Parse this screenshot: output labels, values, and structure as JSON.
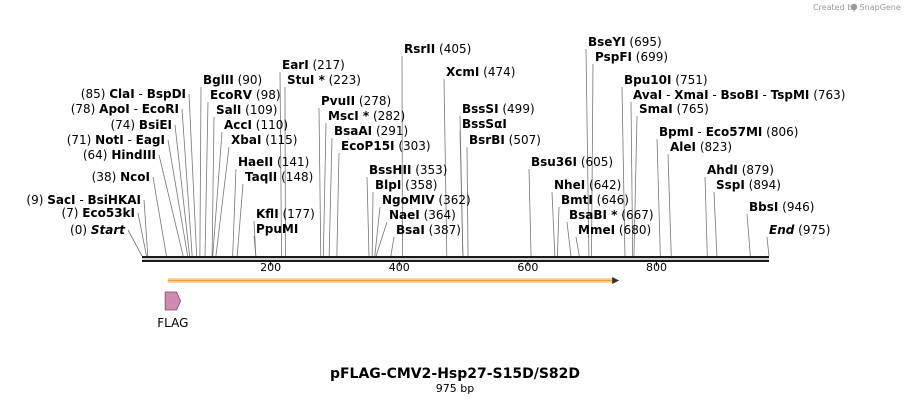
{
  "credit": "Created by SnapGene",
  "title": "pFLAG-CMV2-Hsp27-S15D/S82D",
  "length_label": "975 bp",
  "sequence_length": 975,
  "scale_ticks": [
    {
      "label": "200",
      "value": 200
    },
    {
      "label": "400",
      "value": 400
    },
    {
      "label": "600",
      "value": 600
    },
    {
      "label": "800",
      "value": 800
    }
  ],
  "feature": {
    "name": "FLAG",
    "start": 36,
    "end": 60,
    "color": "#d08ab0"
  },
  "orf": {
    "start": 40,
    "end": 742,
    "color": "#f0a030"
  },
  "sites": [
    {
      "side": "L",
      "pos": "(0)",
      "names": [
        "Start"
      ],
      "italic": true,
      "site": 0
    },
    {
      "side": "L",
      "pos": "(7)",
      "names": [
        "Eco53kI"
      ],
      "site": 7
    },
    {
      "side": "L",
      "pos": "(9)",
      "names": [
        "SacI",
        "BsiHKAI"
      ],
      "site": 9
    },
    {
      "side": "L",
      "pos": "(38)",
      "names": [
        "NcoI"
      ],
      "site": 38
    },
    {
      "side": "L",
      "pos": "(64)",
      "names": [
        "HindIII"
      ],
      "site": 64
    },
    {
      "side": "L",
      "pos": "(71)",
      "names": [
        "NotI",
        "EagI"
      ],
      "site": 71
    },
    {
      "side": "L",
      "pos": "(74)",
      "names": [
        "BsiEI"
      ],
      "site": 74
    },
    {
      "side": "L",
      "pos": "(78)",
      "names": [
        "ApoI",
        "EcoRI"
      ],
      "site": 78
    },
    {
      "side": "L",
      "pos": "(85)",
      "names": [
        "ClaI",
        "BspDI"
      ],
      "site": 85
    },
    {
      "side": "R",
      "pos": "(90)",
      "names": [
        "BglII"
      ],
      "site": 90
    },
    {
      "side": "R",
      "pos": "(98)",
      "names": [
        "EcoRV"
      ],
      "site": 98
    },
    {
      "side": "R",
      "pos": "(109)",
      "names": [
        "SalI"
      ],
      "site": 109
    },
    {
      "side": "R",
      "pos": "(110)",
      "names": [
        "AccI"
      ],
      "site": 110
    },
    {
      "side": "R",
      "pos": "(115)",
      "names": [
        "XbaI"
      ],
      "site": 115
    },
    {
      "side": "R",
      "pos": "(141)",
      "names": [
        "HaeII"
      ],
      "site": 141
    },
    {
      "side": "R",
      "pos": "(148)",
      "names": [
        "TaqII"
      ],
      "site": 148
    },
    {
      "side": "R",
      "pos": "(177)",
      "names": [
        "KflI"
      ],
      "site": 177
    },
    {
      "side": "R",
      "pos": "",
      "names": [
        "PpuMI"
      ],
      "site": 177
    },
    {
      "side": "R",
      "pos": "(217)",
      "names": [
        "EarI"
      ],
      "site": 217
    },
    {
      "side": "R",
      "pos": "(223)",
      "names": [
        "StuI *"
      ],
      "site": 223
    },
    {
      "side": "R",
      "pos": "(278)",
      "names": [
        "PvuII"
      ],
      "site": 278
    },
    {
      "side": "R",
      "pos": "(282)",
      "names": [
        "MscI *"
      ],
      "site": 282
    },
    {
      "side": "R",
      "pos": "(291)",
      "names": [
        "BsaAI"
      ],
      "site": 291
    },
    {
      "side": "R",
      "pos": "(303)",
      "names": [
        "EcoP15I"
      ],
      "site": 303
    },
    {
      "side": "R",
      "pos": "(353)",
      "names": [
        "BssHII"
      ],
      "site": 353
    },
    {
      "side": "R",
      "pos": "(358)",
      "names": [
        "BlpI"
      ],
      "site": 358
    },
    {
      "side": "R",
      "pos": "(362)",
      "names": [
        "NgoMIV"
      ],
      "site": 362
    },
    {
      "side": "R",
      "pos": "(364)",
      "names": [
        "NaeI"
      ],
      "site": 364
    },
    {
      "side": "R",
      "pos": "(387)",
      "names": [
        "BsaI"
      ],
      "site": 387
    },
    {
      "side": "R",
      "pos": "(405)",
      "names": [
        "RsrII"
      ],
      "site": 405
    },
    {
      "side": "R",
      "pos": "(474)",
      "names": [
        "XcmI"
      ],
      "site": 474
    },
    {
      "side": "R",
      "pos": "(499)",
      "names": [
        "BssSI"
      ],
      "site": 499
    },
    {
      "side": "R",
      "pos": "",
      "names": [
        "BssSαI"
      ],
      "site": 499
    },
    {
      "side": "R",
      "pos": "(507)",
      "names": [
        "BsrBI"
      ],
      "site": 507
    },
    {
      "side": "R",
      "pos": "(605)",
      "names": [
        "Bsu36I"
      ],
      "site": 605
    },
    {
      "side": "R",
      "pos": "(642)",
      "names": [
        "NheI"
      ],
      "site": 642
    },
    {
      "side": "R",
      "pos": "(646)",
      "names": [
        "BmtI"
      ],
      "site": 646
    },
    {
      "side": "R",
      "pos": "(667)",
      "names": [
        "BsaBI *"
      ],
      "site": 667
    },
    {
      "side": "R",
      "pos": "(680)",
      "names": [
        "MmeI"
      ],
      "site": 680
    },
    {
      "side": "R",
      "pos": "(695)",
      "names": [
        "BseYI"
      ],
      "site": 695
    },
    {
      "side": "R",
      "pos": "(699)",
      "names": [
        "PspFI"
      ],
      "site": 699
    },
    {
      "side": "R",
      "pos": "(751)",
      "names": [
        "Bpu10I"
      ],
      "site": 751
    },
    {
      "side": "R",
      "pos": "(763)",
      "names": [
        "AvaI",
        "XmaI",
        "BsoBI",
        "TspMI"
      ],
      "site": 763
    },
    {
      "side": "R",
      "pos": "(765)",
      "names": [
        "SmaI"
      ],
      "site": 765
    },
    {
      "side": "R",
      "pos": "(806)",
      "names": [
        "BpmI",
        "Eco57MI"
      ],
      "site": 806
    },
    {
      "side": "R",
      "pos": "(823)",
      "names": [
        "AleI"
      ],
      "site": 823
    },
    {
      "side": "R",
      "pos": "(879)",
      "names": [
        "AhdI"
      ],
      "site": 879
    },
    {
      "side": "R",
      "pos": "(894)",
      "names": [
        "SspI"
      ],
      "site": 894
    },
    {
      "side": "R",
      "pos": "(946)",
      "names": [
        "BbsI"
      ],
      "site": 946
    },
    {
      "side": "R",
      "pos": "(975)",
      "names": [
        "End"
      ],
      "italic": true,
      "site": 975
    }
  ]
}
